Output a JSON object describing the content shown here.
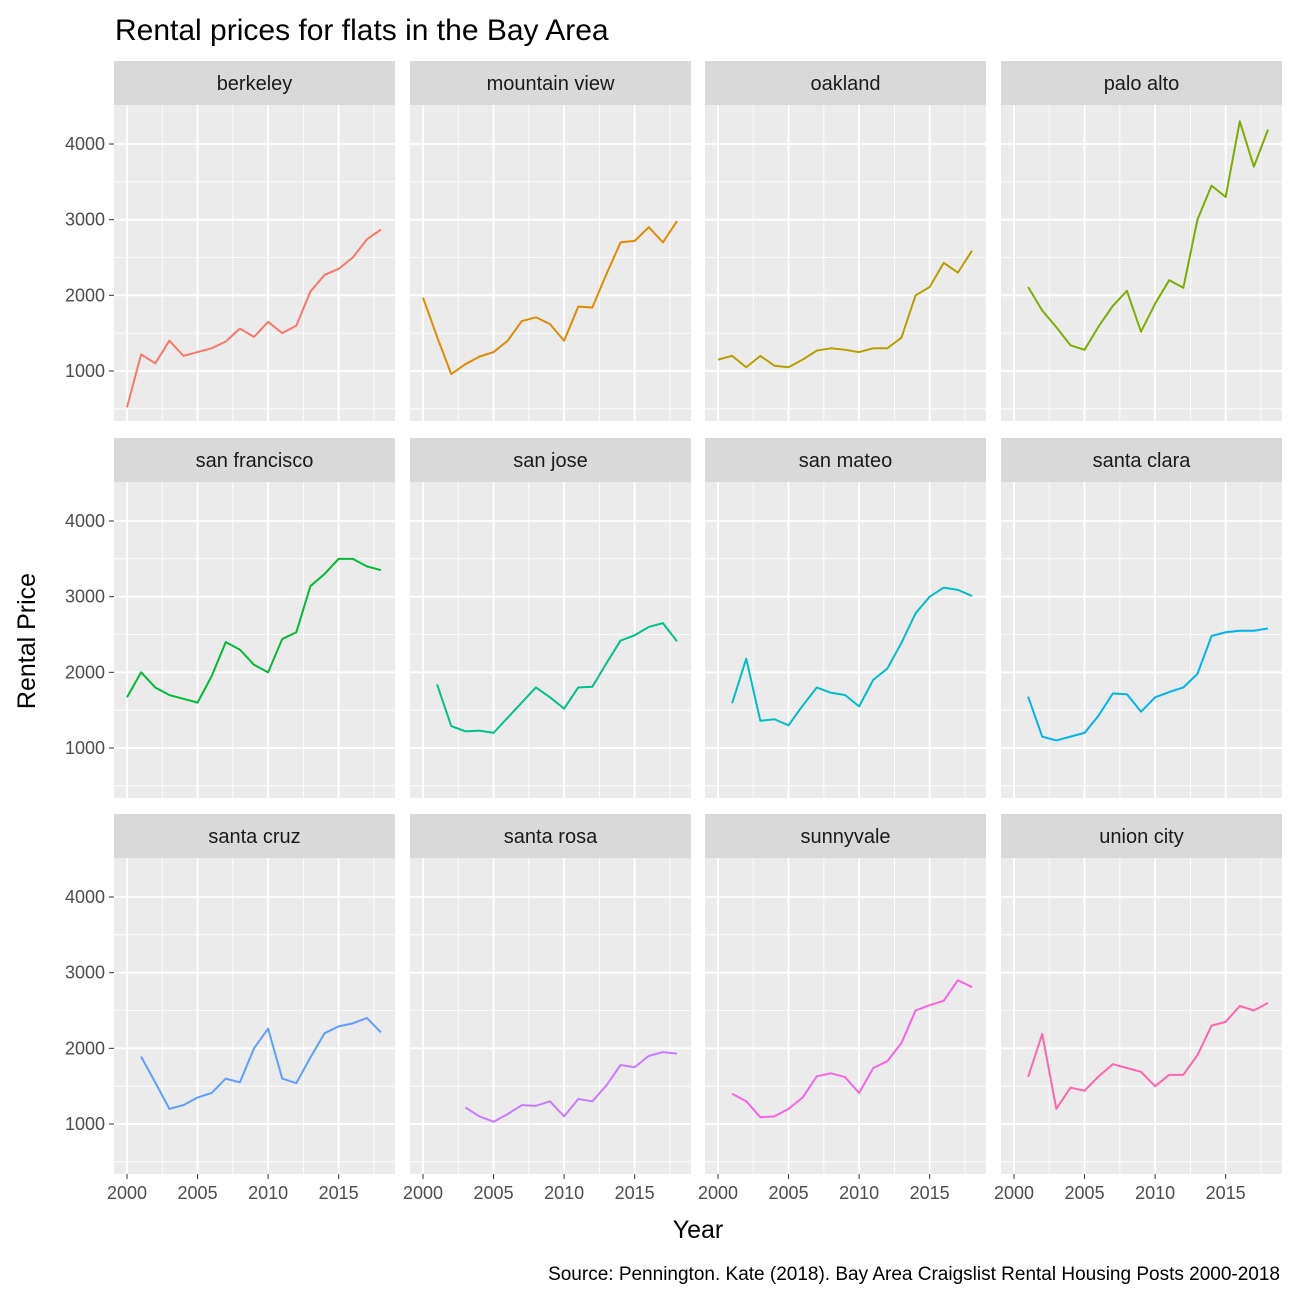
{
  "chart_data": {
    "type": "line",
    "title": "Rental prices for flats in the Bay Area",
    "xlabel": "Year",
    "ylabel": "Rental Price",
    "caption": "Source: Pennington. Kate (2018). Bay Area Craigslist Rental Housing Posts 2000-2018",
    "xlim": [
      2000,
      2018
    ],
    "ylim": [
      0,
      4500
    ],
    "x_ticks": [
      2000,
      2005,
      2010,
      2015
    ],
    "y_ticks": [
      1000,
      2000,
      3000,
      4000
    ],
    "grid": true,
    "legend": "none",
    "layout": {
      "rows": 3,
      "cols": 4
    },
    "panels": [
      {
        "name": "berkeley",
        "color": "#F8766D",
        "x": [
          2000,
          2001,
          2002,
          2003,
          2004,
          2005,
          2006,
          2007,
          2008,
          2009,
          2010,
          2011,
          2012,
          2013,
          2014,
          2015,
          2016,
          2017,
          2018
        ],
        "y": [
          520,
          1220,
          1100,
          1400,
          1200,
          1250,
          1300,
          1390,
          1560,
          1450,
          1650,
          1500,
          1600,
          2050,
          2270,
          2350,
          2500,
          2740,
          2870
        ]
      },
      {
        "name": "mountain view",
        "color": "#DE8C00",
        "x": [
          2000,
          2001,
          2002,
          2003,
          2004,
          2005,
          2006,
          2007,
          2008,
          2009,
          2010,
          2011,
          2012,
          2013,
          2014,
          2015,
          2016,
          2017,
          2018
        ],
        "y": [
          1970,
          1450,
          960,
          1090,
          1190,
          1250,
          1400,
          1660,
          1710,
          1620,
          1400,
          1850,
          1840,
          2280,
          2700,
          2720,
          2900,
          2700,
          2980
        ]
      },
      {
        "name": "oakland",
        "color": "#B79F00",
        "x": [
          2000,
          2001,
          2002,
          2003,
          2004,
          2005,
          2006,
          2007,
          2008,
          2009,
          2010,
          2011,
          2012,
          2013,
          2014,
          2015,
          2016,
          2017,
          2018
        ],
        "y": [
          1150,
          1200,
          1050,
          1200,
          1070,
          1050,
          1150,
          1270,
          1300,
          1280,
          1250,
          1300,
          1300,
          1440,
          2000,
          2110,
          2430,
          2300,
          2590
        ]
      },
      {
        "name": "palo alto",
        "color": "#7CAE00",
        "x": [
          2001,
          2002,
          2003,
          2004,
          2005,
          2006,
          2007,
          2008,
          2009,
          2010,
          2011,
          2012,
          2013,
          2014,
          2015,
          2016,
          2017,
          2018
        ],
        "y": [
          2110,
          1800,
          1580,
          1340,
          1280,
          1590,
          1860,
          2060,
          1520,
          1890,
          2200,
          2100,
          3000,
          3450,
          3300,
          4300,
          3700,
          4190
        ]
      },
      {
        "name": "san francisco",
        "color": "#00BA38",
        "x": [
          2000,
          2001,
          2002,
          2003,
          2004,
          2005,
          2006,
          2007,
          2008,
          2009,
          2010,
          2011,
          2012,
          2013,
          2014,
          2015,
          2016,
          2017,
          2018
        ],
        "y": [
          1670,
          2000,
          1800,
          1700,
          1650,
          1600,
          1950,
          2400,
          2300,
          2100,
          2000,
          2440,
          2530,
          3140,
          3300,
          3500,
          3500,
          3400,
          3350
        ]
      },
      {
        "name": "san jose",
        "color": "#00C08B",
        "x": [
          2001,
          2002,
          2003,
          2004,
          2005,
          2006,
          2007,
          2008,
          2009,
          2010,
          2011,
          2012,
          2013,
          2014,
          2015,
          2016,
          2017,
          2018
        ],
        "y": [
          1840,
          1290,
          1220,
          1230,
          1200,
          1400,
          1600,
          1800,
          1670,
          1520,
          1800,
          1810,
          2120,
          2420,
          2490,
          2600,
          2650,
          2410
        ]
      },
      {
        "name": "san mateo",
        "color": "#00BFC4",
        "x": [
          2001,
          2002,
          2003,
          2004,
          2005,
          2006,
          2007,
          2008,
          2009,
          2010,
          2011,
          2012,
          2013,
          2014,
          2015,
          2016,
          2017,
          2018
        ],
        "y": [
          1590,
          2180,
          1360,
          1380,
          1300,
          1560,
          1800,
          1730,
          1700,
          1550,
          1900,
          2050,
          2390,
          2780,
          3000,
          3120,
          3090,
          3010
        ]
      },
      {
        "name": "santa clara",
        "color": "#00B4F0",
        "x": [
          2001,
          2002,
          2003,
          2004,
          2005,
          2006,
          2007,
          2008,
          2009,
          2010,
          2011,
          2012,
          2013,
          2014,
          2015,
          2016,
          2017,
          2018
        ],
        "y": [
          1680,
          1150,
          1100,
          1150,
          1200,
          1430,
          1720,
          1710,
          1480,
          1670,
          1740,
          1800,
          1980,
          2480,
          2530,
          2550,
          2550,
          2580
        ]
      },
      {
        "name": "santa cruz",
        "color": "#619CFF",
        "x": [
          2001,
          2002,
          2003,
          2004,
          2005,
          2006,
          2007,
          2008,
          2009,
          2010,
          2011,
          2012,
          2013,
          2014,
          2015,
          2016,
          2017,
          2018
        ],
        "y": [
          1890,
          1550,
          1200,
          1250,
          1350,
          1410,
          1600,
          1550,
          2000,
          2260,
          1600,
          1540,
          1880,
          2200,
          2290,
          2330,
          2400,
          2210
        ]
      },
      {
        "name": "santa rosa",
        "color": "#C77CFF",
        "x": [
          2003,
          2004,
          2005,
          2006,
          2007,
          2008,
          2009,
          2010,
          2011,
          2012,
          2013,
          2014,
          2015,
          2016,
          2017,
          2018
        ],
        "y": [
          1220,
          1100,
          1030,
          1130,
          1250,
          1240,
          1300,
          1100,
          1330,
          1300,
          1510,
          1780,
          1750,
          1900,
          1950,
          1930
        ]
      },
      {
        "name": "sunnyvale",
        "color": "#F564E3",
        "x": [
          2001,
          2002,
          2003,
          2004,
          2005,
          2006,
          2007,
          2008,
          2009,
          2010,
          2011,
          2012,
          2013,
          2014,
          2015,
          2016,
          2017,
          2018
        ],
        "y": [
          1400,
          1300,
          1090,
          1100,
          1200,
          1350,
          1630,
          1670,
          1620,
          1410,
          1740,
          1830,
          2070,
          2500,
          2570,
          2630,
          2900,
          2810
        ]
      },
      {
        "name": "union city",
        "color": "#FF64B0",
        "x": [
          2001,
          2002,
          2003,
          2004,
          2005,
          2006,
          2007,
          2008,
          2009,
          2010,
          2011,
          2012,
          2013,
          2014,
          2015,
          2016,
          2017,
          2018
        ],
        "y": [
          1620,
          2190,
          1200,
          1480,
          1440,
          1630,
          1790,
          1740,
          1690,
          1500,
          1650,
          1650,
          1910,
          2300,
          2350,
          2560,
          2500,
          2600
        ]
      }
    ]
  }
}
